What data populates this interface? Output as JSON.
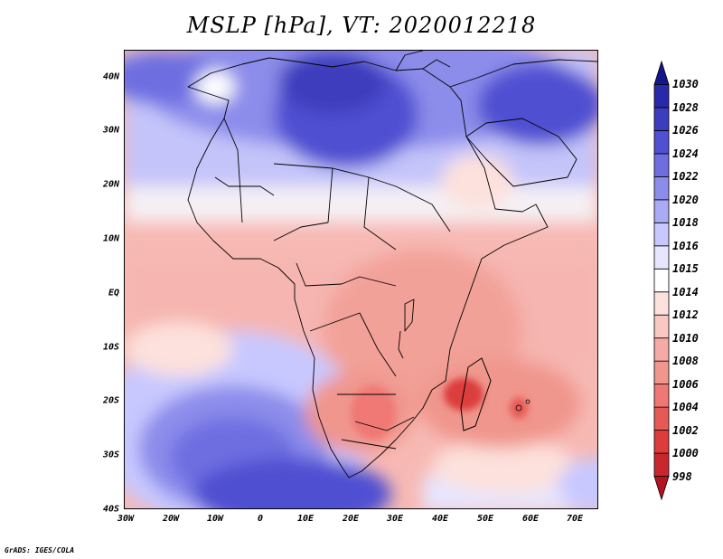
{
  "title": "MSLP [hPa], VT: 2020012218",
  "footer": "GrADS: IGES/COLA",
  "map": {
    "lat_labels": [
      "40N",
      "30N",
      "20N",
      "10N",
      "EQ",
      "10S",
      "20S",
      "30S",
      "40S"
    ],
    "lat_values": [
      40,
      30,
      20,
      10,
      0,
      -10,
      -20,
      -30,
      -40
    ],
    "lon_labels": [
      "30W",
      "20W",
      "10W",
      "0",
      "10E",
      "20E",
      "30E",
      "40E",
      "50E",
      "60E",
      "70E"
    ],
    "lon_values": [
      -30,
      -20,
      -10,
      0,
      10,
      20,
      30,
      40,
      50,
      60,
      70
    ]
  },
  "colorbar": {
    "units": "hPa",
    "levels": [
      "998",
      "1000",
      "1002",
      "1004",
      "1006",
      "1008",
      "1010",
      "1012",
      "1014",
      "1015",
      "1016",
      "1018",
      "1020",
      "1022",
      "1024",
      "1026",
      "1028",
      "1030"
    ],
    "colors": [
      "#b4141e",
      "#c8282d",
      "#dc3c3c",
      "#e65a55",
      "#f07874",
      "#f0968c",
      "#f5aaa5",
      "#fac8c3",
      "#fde1dc",
      "#ffffff",
      "#e6e6ff",
      "#c8c8ff",
      "#aaaaf5",
      "#8c8ceb",
      "#6e6ee1",
      "#5050d2",
      "#3c3cbe",
      "#2828aa",
      "#14148c"
    ]
  }
}
